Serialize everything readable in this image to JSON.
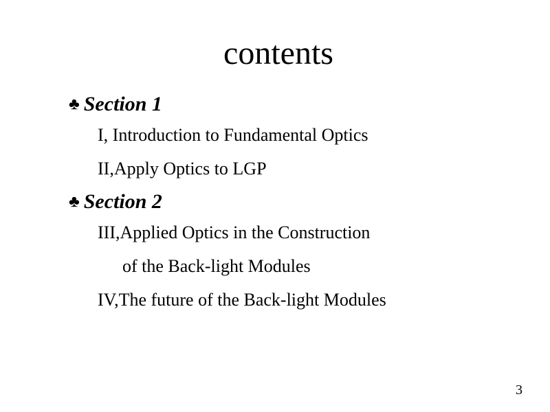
{
  "title": "contents",
  "sections": [
    {
      "bullet": "♣",
      "label": "Section 1",
      "items": [
        "I, Introduction to Fundamental Optics",
        "II,Apply Optics to LGP"
      ]
    },
    {
      "bullet": "♣",
      "label": "Section 2",
      "items": [
        "III,Applied Optics in  the Construction",
        "of  the Back-light Modules",
        "IV,The future of the Back-light Modules"
      ],
      "continuation_indices": [
        1
      ]
    }
  ],
  "page_number": "3",
  "colors": {
    "background": "#ffffff",
    "text": "#000000"
  },
  "typography": {
    "title_fontsize": 48,
    "section_fontsize": 30,
    "item_fontsize": 26,
    "pagenum_fontsize": 20,
    "font_family": "Times New Roman"
  }
}
